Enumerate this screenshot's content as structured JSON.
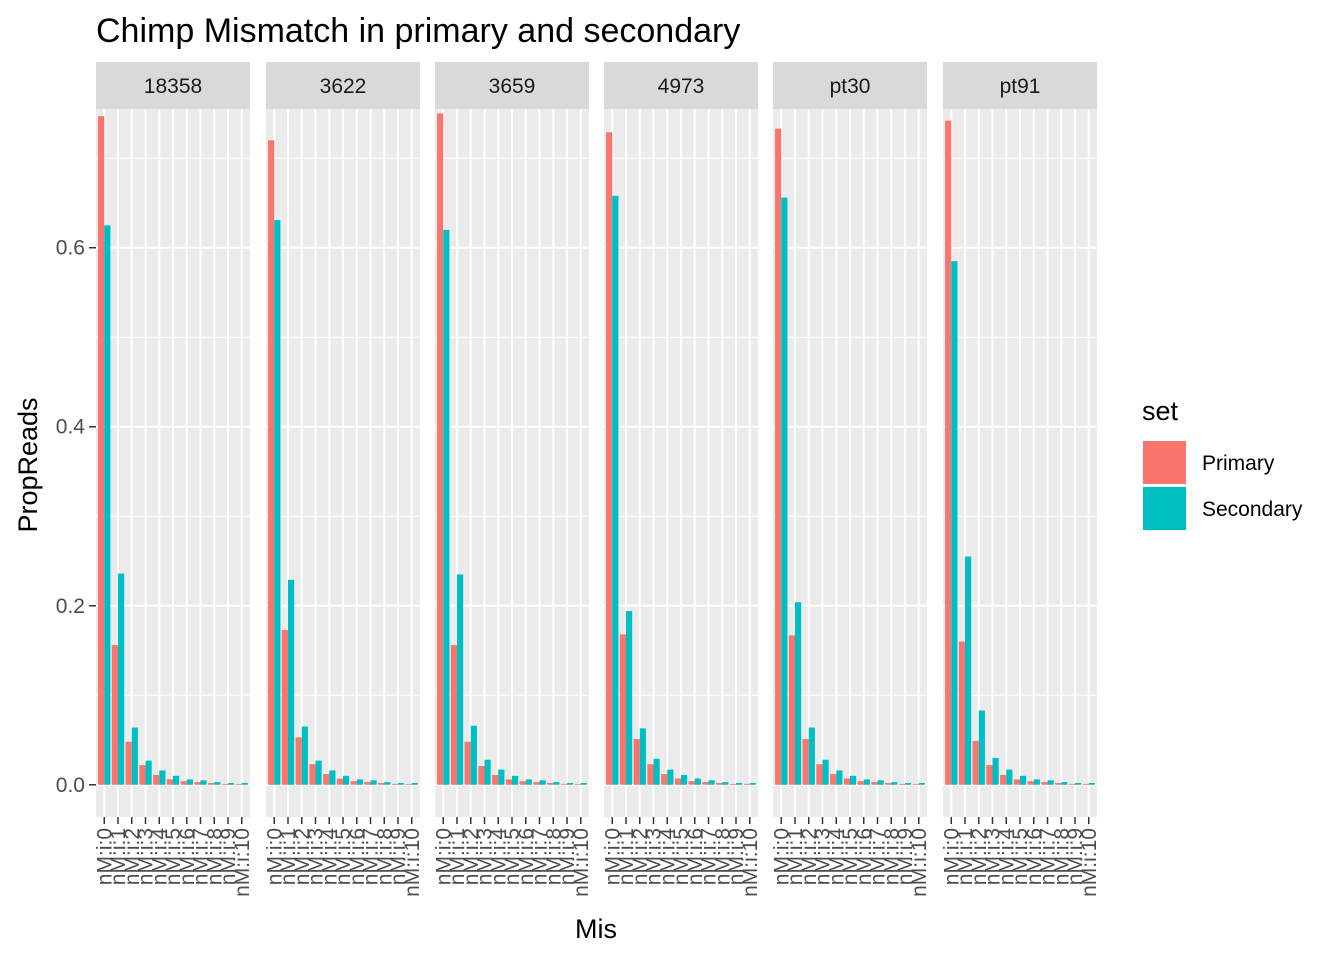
{
  "chart_data": {
    "type": "bar",
    "title": "Chimp Mismatch in primary and secondary",
    "xlabel": "Mis",
    "ylabel": "PropReads",
    "ylim": [
      -0.036,
      0.755
    ],
    "yticks": [
      0.0,
      0.2,
      0.4,
      0.6
    ],
    "ytick_labels": [
      "0.0",
      "0.2",
      "0.4",
      "0.6"
    ],
    "grid": true,
    "legend": {
      "title": "set",
      "position": "right",
      "entries": [
        {
          "name": "Primary",
          "color": "#F8766D"
        },
        {
          "name": "Secondary",
          "color": "#00BFC4"
        }
      ]
    },
    "categories": [
      "nM:i:0",
      "nM:i:1",
      "nM:i:2",
      "nM:i:3",
      "nM:i:4",
      "nM:i:5",
      "nM:i:6",
      "nM:i:7",
      "nM:i:8",
      "nM:i:9",
      "nM:i:10"
    ],
    "panels": [
      {
        "label": "18358",
        "series": [
          {
            "name": "Primary",
            "values": [
              0.747,
              0.156,
              0.048,
              0.022,
              0.011,
              0.006,
              0.004,
              0.003,
              0.002,
              0.001,
              0.001
            ]
          },
          {
            "name": "Secondary",
            "values": [
              0.625,
              0.236,
              0.064,
              0.027,
              0.016,
              0.01,
              0.006,
              0.005,
              0.003,
              0.002,
              0.002
            ]
          }
        ]
      },
      {
        "label": "3622",
        "series": [
          {
            "name": "Primary",
            "values": [
              0.72,
              0.173,
              0.053,
              0.023,
              0.012,
              0.007,
              0.004,
              0.003,
              0.002,
              0.001,
              0.001
            ]
          },
          {
            "name": "Secondary",
            "values": [
              0.631,
              0.229,
              0.065,
              0.027,
              0.016,
              0.01,
              0.006,
              0.005,
              0.003,
              0.002,
              0.002
            ]
          }
        ]
      },
      {
        "label": "3659",
        "series": [
          {
            "name": "Primary",
            "values": [
              0.75,
              0.156,
              0.048,
              0.021,
              0.011,
              0.006,
              0.004,
              0.003,
              0.002,
              0.001,
              0.001
            ]
          },
          {
            "name": "Secondary",
            "values": [
              0.62,
              0.235,
              0.066,
              0.028,
              0.017,
              0.01,
              0.006,
              0.005,
              0.003,
              0.002,
              0.002
            ]
          }
        ]
      },
      {
        "label": "4973",
        "series": [
          {
            "name": "Primary",
            "values": [
              0.729,
              0.168,
              0.051,
              0.023,
              0.012,
              0.007,
              0.004,
              0.003,
              0.002,
              0.001,
              0.001
            ]
          },
          {
            "name": "Secondary",
            "values": [
              0.658,
              0.194,
              0.063,
              0.029,
              0.017,
              0.011,
              0.007,
              0.005,
              0.003,
              0.002,
              0.002
            ]
          }
        ]
      },
      {
        "label": "pt30",
        "series": [
          {
            "name": "Primary",
            "values": [
              0.733,
              0.167,
              0.051,
              0.023,
              0.012,
              0.007,
              0.004,
              0.003,
              0.002,
              0.001,
              0.001
            ]
          },
          {
            "name": "Secondary",
            "values": [
              0.656,
              0.204,
              0.064,
              0.028,
              0.016,
              0.01,
              0.006,
              0.005,
              0.003,
              0.002,
              0.002
            ]
          }
        ]
      },
      {
        "label": "pt91",
        "series": [
          {
            "name": "Primary",
            "values": [
              0.742,
              0.16,
              0.049,
              0.022,
              0.011,
              0.006,
              0.004,
              0.003,
              0.002,
              0.001,
              0.001
            ]
          },
          {
            "name": "Secondary",
            "values": [
              0.585,
              0.255,
              0.083,
              0.03,
              0.017,
              0.01,
              0.006,
              0.005,
              0.003,
              0.002,
              0.002
            ]
          }
        ]
      }
    ]
  }
}
